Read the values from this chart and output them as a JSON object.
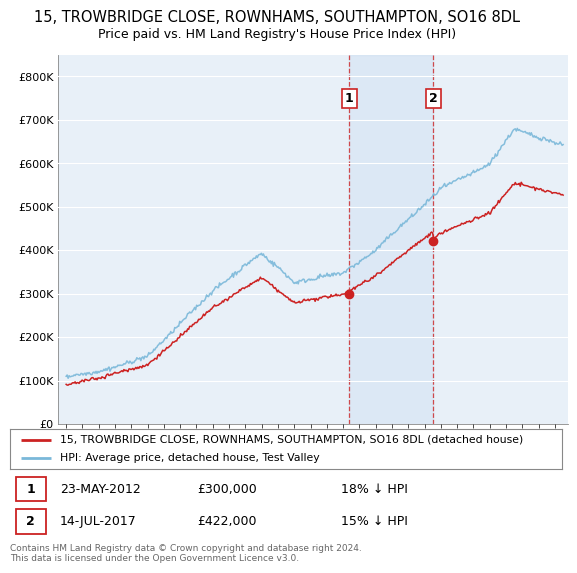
{
  "title": "15, TROWBRIDGE CLOSE, ROWNHAMS, SOUTHAMPTON, SO16 8DL",
  "subtitle": "Price paid vs. HM Land Registry's House Price Index (HPI)",
  "ylim": [
    0,
    850000
  ],
  "yticks": [
    0,
    100000,
    200000,
    300000,
    400000,
    500000,
    600000,
    700000,
    800000
  ],
  "ytick_labels": [
    "£0",
    "£100K",
    "£200K",
    "£300K",
    "£400K",
    "£500K",
    "£600K",
    "£700K",
    "£800K"
  ],
  "sale1_date": 2012.38,
  "sale1_price": 300000,
  "sale1_label": "1",
  "sale2_date": 2017.53,
  "sale2_price": 422000,
  "sale2_label": "2",
  "hpi_color": "#7ab8d9",
  "price_color": "#cc2222",
  "background_color": "#e8f0f8",
  "legend_line1": "15, TROWBRIDGE CLOSE, ROWNHAMS, SOUTHAMPTON, SO16 8DL (detached house)",
  "legend_line2": "HPI: Average price, detached house, Test Valley",
  "footer": "Contains HM Land Registry data © Crown copyright and database right 2024.\nThis data is licensed under the Open Government Licence v3.0.",
  "title_fontsize": 10.5,
  "subtitle_fontsize": 9,
  "ann_date1": "23-MAY-2012",
  "ann_price1": "£300,000",
  "ann_pct1": "18% ↓ HPI",
  "ann_date2": "14-JUL-2017",
  "ann_price2": "£422,000",
  "ann_pct2": "15% ↓ HPI"
}
